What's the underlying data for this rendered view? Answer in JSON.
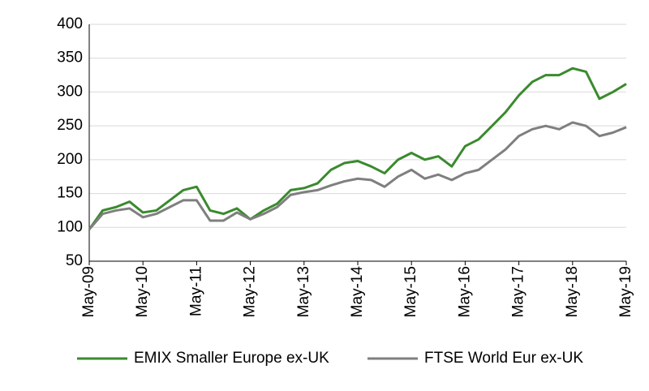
{
  "chart_data": {
    "type": "line",
    "categories": [
      "May-09",
      null,
      null,
      null,
      "May-10",
      null,
      null,
      null,
      "May-11",
      null,
      null,
      null,
      "May-12",
      null,
      null,
      null,
      "May-13",
      null,
      null,
      null,
      "May-14",
      null,
      null,
      null,
      "May-15",
      null,
      null,
      null,
      "May-16",
      null,
      null,
      null,
      "May-17",
      null,
      null,
      null,
      "May-18",
      null,
      null,
      null,
      "May-19"
    ],
    "series": [
      {
        "name": "EMIX Smaller Europe ex-UK",
        "color": "#3a8a2e",
        "values": [
          97,
          125,
          130,
          138,
          122,
          125,
          140,
          155,
          160,
          125,
          120,
          128,
          112,
          125,
          135,
          155,
          158,
          165,
          185,
          195,
          198,
          190,
          180,
          200,
          210,
          200,
          205,
          190,
          220,
          230,
          250,
          270,
          295,
          315,
          325,
          325,
          335,
          330,
          290,
          300,
          312
        ]
      },
      {
        "name": "FTSE World Eur ex-UK",
        "color": "#7f7f7f",
        "values": [
          97,
          120,
          125,
          128,
          115,
          120,
          130,
          140,
          140,
          110,
          110,
          122,
          112,
          120,
          130,
          148,
          152,
          155,
          162,
          168,
          172,
          170,
          160,
          175,
          185,
          172,
          178,
          170,
          180,
          185,
          200,
          215,
          235,
          245,
          250,
          245,
          255,
          250,
          235,
          240,
          248
        ]
      }
    ],
    "ylim": [
      50,
      400
    ],
    "yticks": [
      50,
      100,
      150,
      200,
      250,
      300,
      350,
      400
    ],
    "grid": true
  }
}
